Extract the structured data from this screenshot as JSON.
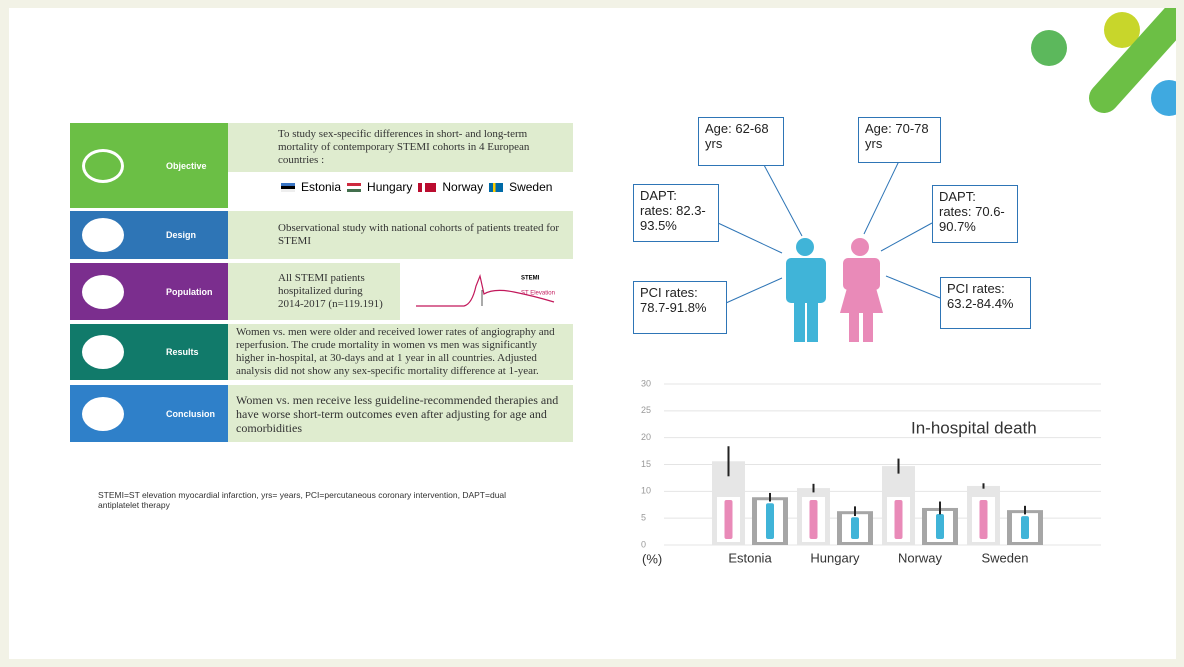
{
  "panels": [
    {
      "label": "Objective",
      "text": "To study sex-specific differences in short- and long-term mortality of contemporary STEMI cohorts in 4 European countries :"
    },
    {
      "label": "Design",
      "text": "Observational study with national cohorts of patients treated for STEMI"
    },
    {
      "label": "Population",
      "text": "All STEMI patients hospitalized during 2014-2017 (n=119.191)"
    },
    {
      "label": "Results",
      "text": "Women vs. men were older and received lower rates of angiography and reperfusion.  The crude mortality in women vs men was significantly higher in-hospital, at 30-days and at 1 year in all countries. Adjusted analysis did not show any sex-specific mortality difference at 1-year."
    },
    {
      "label": "Conclusion",
      "text": "Women vs. men receive less guideline-recommended therapies and have worse short-term outcomes even after adjusting for age and comorbidities"
    }
  ],
  "countries": [
    "Estonia",
    "Hungary",
    "Norway",
    "Sweden"
  ],
  "stemi_inset": {
    "title": "STEMI",
    "subtitle": "ST Elevation"
  },
  "footnote": "STEMI=ST elevation myocardial infarction, yrs= years, PCI=percutaneous coronary intervention, DAPT=dual antiplatelet therapy",
  "callouts": {
    "men_age": "Age: 62-68 yrs",
    "women_age": "Age: 70-78 yrs",
    "men_dapt": "DAPT: rates: 82.3-93.5%",
    "women_dapt": "DAPT: rates: 70.6-90.7%",
    "men_pci": "PCI rates: 78.7-91.8%",
    "women_pci": "PCI rates: 63.2-84.4%"
  },
  "chart_data": {
    "type": "bar",
    "title": "In-hospital death",
    "y_label": "(%)",
    "categories": [
      "Estonia",
      "Hungary",
      "Norway",
      "Sweden"
    ],
    "series": [
      {
        "color": "#e6e6e6",
        "values": [
          15.6,
          10.6,
          14.7,
          11.0
        ],
        "errors": [
          2.8,
          0.8,
          1.4,
          0.5
        ]
      },
      {
        "color": "#a6a6a6",
        "values": [
          8.9,
          6.3,
          6.9,
          6.5
        ],
        "errors": [
          0.8,
          0.9,
          1.2,
          0.8
        ]
      }
    ],
    "ylim": [
      0,
      30
    ],
    "yticks": [
      0,
      5,
      10,
      15,
      20,
      25,
      30
    ],
    "grid": true
  }
}
